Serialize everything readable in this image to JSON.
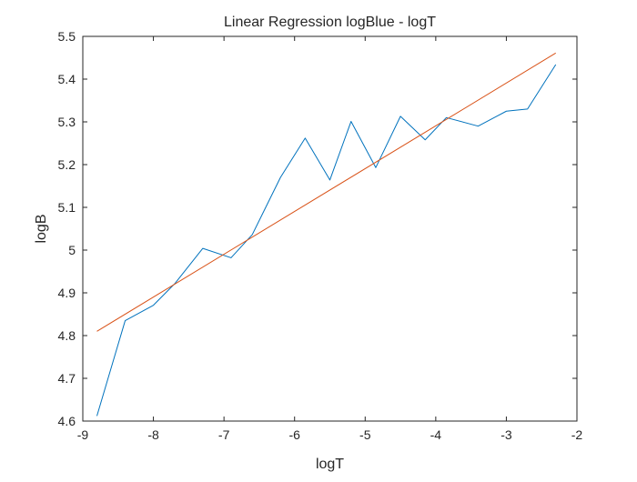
{
  "chart_data": {
    "type": "line",
    "title": "Linear Regression logBlue - logT",
    "xlabel": "logT",
    "ylabel": "logB",
    "xlim": [
      -9,
      -2
    ],
    "ylim": [
      4.6,
      5.5
    ],
    "xticks": [
      -9,
      -8,
      -7,
      -6,
      -5,
      -4,
      -3,
      -2
    ],
    "yticks": [
      4.6,
      4.7,
      4.8,
      4.9,
      5,
      5.1,
      5.2,
      5.3,
      5.4,
      5.5
    ],
    "xtick_labels": [
      "-9",
      "-8",
      "-7",
      "-6",
      "-5",
      "-4",
      "-3",
      "-2"
    ],
    "ytick_labels": [
      "4.6",
      "4.7",
      "4.8",
      "4.9",
      "5",
      "5.1",
      "5.2",
      "5.3",
      "5.4",
      "5.5"
    ],
    "grid": false,
    "series": [
      {
        "color": "#0072BD",
        "x": [
          -8.8,
          -8.4,
          -8.0,
          -7.7,
          -7.3,
          -6.9,
          -6.6,
          -6.2,
          -5.85,
          -5.5,
          -5.2,
          -4.85,
          -4.5,
          -4.15,
          -3.85,
          -3.4,
          -3.0,
          -2.7,
          -2.3
        ],
        "y": [
          4.612,
          4.835,
          4.871,
          4.921,
          5.004,
          4.982,
          5.036,
          5.17,
          5.262,
          5.164,
          5.301,
          5.193,
          5.313,
          5.258,
          5.31,
          5.29,
          5.325,
          5.33,
          5.434
        ]
      },
      {
        "color": "#D95319",
        "x": [
          -8.8,
          -2.3
        ],
        "y": [
          4.81,
          5.461
        ]
      }
    ]
  }
}
